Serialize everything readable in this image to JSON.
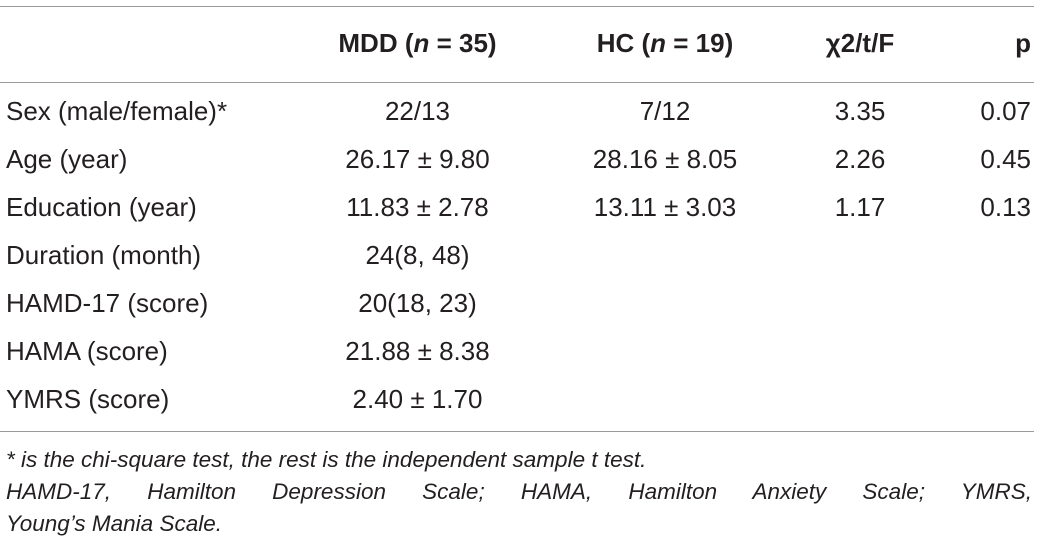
{
  "table": {
    "header": {
      "label": "",
      "mdd": {
        "pre": "MDD (",
        "n": "n",
        "post": " = 35)"
      },
      "hc": {
        "pre": "HC (",
        "n": "n",
        "post": " = 19)"
      },
      "stat": "χ2/t/F",
      "p": "p"
    },
    "rows": [
      {
        "label": "Sex (male/female)*",
        "mdd": "22/13",
        "hc": "7/12",
        "stat": "3.35",
        "p": "0.07"
      },
      {
        "label": "Age (year)",
        "mdd": "26.17 ± 9.80",
        "hc": "28.16 ± 8.05",
        "stat": "2.26",
        "p": "0.45"
      },
      {
        "label": "Education (year)",
        "mdd": "11.83 ± 2.78",
        "hc": "13.11 ± 3.03",
        "stat": "1.17",
        "p": "0.13"
      },
      {
        "label": "Duration (month)",
        "mdd": "24(8, 48)",
        "hc": "",
        "stat": "",
        "p": ""
      },
      {
        "label": "HAMD-17 (score)",
        "mdd": "20(18, 23)",
        "hc": "",
        "stat": "",
        "p": ""
      },
      {
        "label": "HAMA (score)",
        "mdd": "21.88 ± 8.38",
        "hc": "",
        "stat": "",
        "p": ""
      },
      {
        "label": "YMRS (score)",
        "mdd": "2.40 ± 1.70",
        "hc": "",
        "stat": "",
        "p": ""
      }
    ]
  },
  "footnotes": {
    "line1": "* is the chi-square test, the rest is the independent sample t test.",
    "line2": "HAMD-17, Hamilton Depression Scale; HAMA, Hamilton Anxiety Scale; YMRS,",
    "line3": "Young’s Mania Scale."
  },
  "colors": {
    "text": "#231f20",
    "rule": "#9a9a9a"
  }
}
